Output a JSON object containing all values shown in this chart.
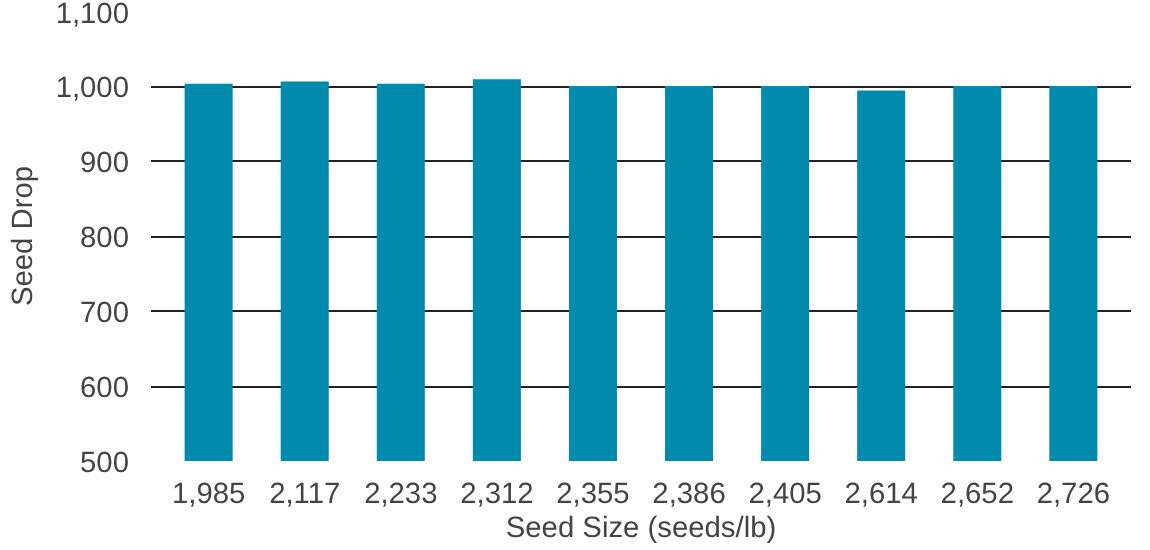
{
  "chart_data": {
    "type": "bar",
    "xlabel": "Seed Size (seeds/lb)",
    "ylabel": "Seed Drop",
    "categories": [
      "1,985",
      "2,117",
      "2,233",
      "2,312",
      "2,355",
      "2,386",
      "2,405",
      "2,614",
      "2,652",
      "2,726"
    ],
    "values": [
      1003,
      1006,
      1003,
      1009,
      1000,
      1000,
      1000,
      994,
      1000,
      1000
    ],
    "color": "#008bae",
    "ylim": [
      500,
      1100
    ],
    "yticks": [
      500,
      600,
      700,
      800,
      900,
      {
        "value": 1000,
        "label": "1,000"
      },
      {
        "value": 1100,
        "label": "1,100"
      }
    ],
    "grid": "y"
  }
}
